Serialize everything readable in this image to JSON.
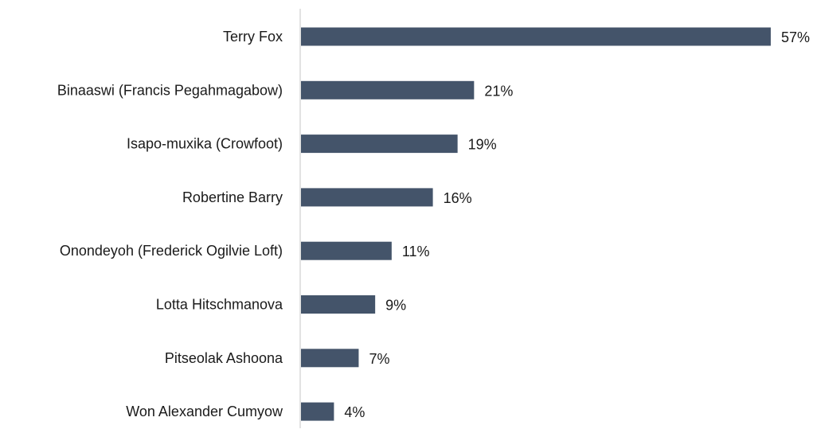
{
  "chart_data": {
    "type": "bar",
    "orientation": "horizontal",
    "categories": [
      "Terry Fox",
      "Binaaswi (Francis Pegahmagabow)",
      "Isapo-muxika (Crowfoot)",
      "Robertine Barry",
      "Onondeyoh (Frederick Ogilvie Loft)",
      "Lotta Hitschmanova",
      "Pitseolak Ashoona",
      "Won Alexander Cumyow"
    ],
    "values": [
      57,
      21,
      19,
      16,
      11,
      9,
      7,
      4
    ],
    "value_labels": [
      "57%",
      "21%",
      "19%",
      "16%",
      "11%",
      "9%",
      "7%",
      "4%"
    ],
    "unit": "%",
    "xlim": [
      0,
      60
    ],
    "grid": false,
    "legend": "none",
    "bar_color": "#44546a",
    "axis_color": "#d9d9d9"
  }
}
